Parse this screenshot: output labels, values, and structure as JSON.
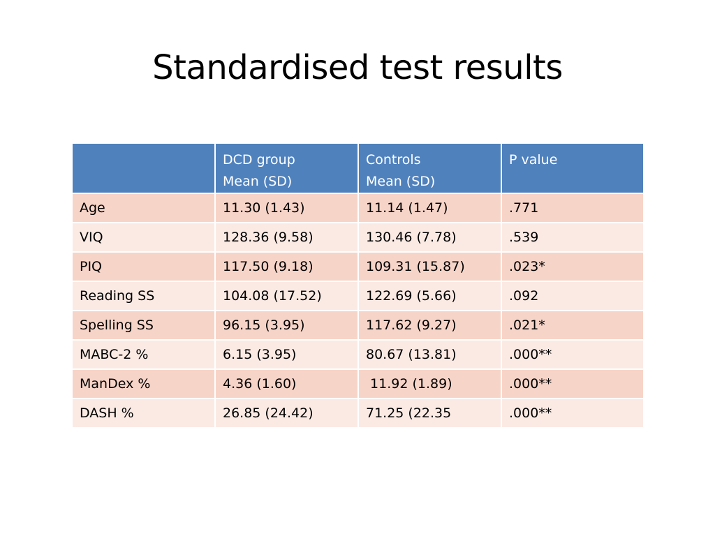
{
  "slide": {
    "title": "Standardised test results"
  },
  "table": {
    "headers": [
      {
        "line1": "",
        "line2": ""
      },
      {
        "line1": "DCD group",
        "line2": "Mean (SD)"
      },
      {
        "line1": "Controls",
        "line2": "Mean (SD)"
      },
      {
        "line1": "P value",
        "line2": ""
      }
    ],
    "rows": [
      {
        "measure": "Age",
        "dcd": "11.30 (1.43)",
        "controls": "11.14 (1.47)",
        "p": ".771"
      },
      {
        "measure": "VIQ",
        "dcd": "128.36 (9.58)",
        "controls": "130.46  (7.78)",
        "p": ".539"
      },
      {
        "measure": "PIQ",
        "dcd": "117.50 (9.18)",
        "controls": "109.31 (15.87)",
        "p": ".023*"
      },
      {
        "measure": "Reading SS",
        "dcd": "104.08 (17.52)",
        "controls": "122.69 (5.66)",
        "p": ".092"
      },
      {
        "measure": "Spelling SS",
        "dcd": "96.15 (3.95)",
        "controls": "117.62 (9.27)",
        "p": ".021*"
      },
      {
        "measure": "MABC-2 %",
        "dcd": "6.15 (3.95)",
        "controls": "80.67 (13.81)",
        "p": ".000**"
      },
      {
        "measure": "ManDex %",
        "dcd": "4.36 (1.60)",
        "controls": " 11.92 (1.89)",
        "p": ".000**"
      },
      {
        "measure": "DASH %",
        "dcd": "26.85 (24.42)",
        "controls": "71.25 (22.35",
        "p": ".000**"
      }
    ]
  },
  "colors": {
    "header_bg": "#4f81bd",
    "row_odd_bg": "#f7d4c8",
    "row_even_bg": "#fbeae4"
  }
}
